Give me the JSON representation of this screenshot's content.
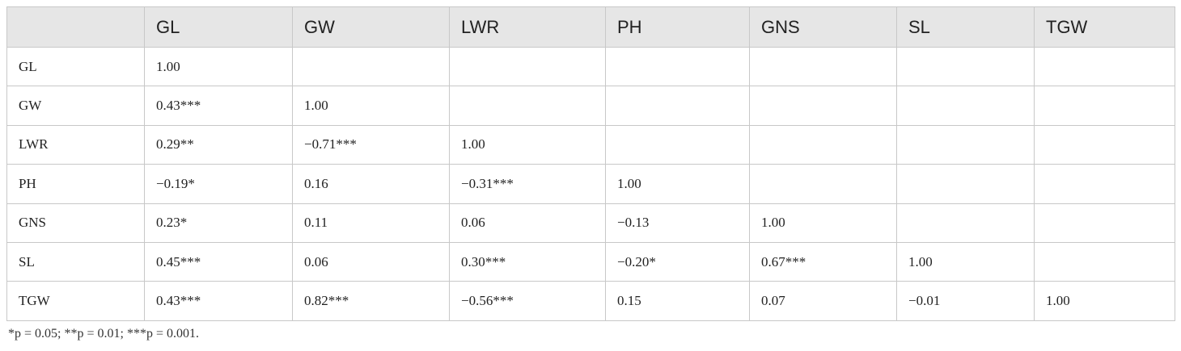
{
  "table": {
    "columns": [
      "GL",
      "GW",
      "LWR",
      "PH",
      "GNS",
      "SL",
      "TGW"
    ],
    "rows": [
      {
        "label": "GL",
        "cells": [
          "1.00"
        ]
      },
      {
        "label": "GW",
        "cells": [
          "0.43***",
          "1.00"
        ]
      },
      {
        "label": "LWR",
        "cells": [
          "0.29**",
          "−0.71***",
          "1.00"
        ]
      },
      {
        "label": "PH",
        "cells": [
          "−0.19*",
          "0.16",
          "−0.31***",
          "1.00"
        ]
      },
      {
        "label": "GNS",
        "cells": [
          "0.23*",
          "0.11",
          "0.06",
          "−0.13",
          "1.00"
        ]
      },
      {
        "label": "SL",
        "cells": [
          "0.45***",
          "0.06",
          "0.30***",
          "−0.20*",
          "0.67***",
          "1.00"
        ]
      },
      {
        "label": "TGW",
        "cells": [
          "0.43***",
          "0.82***",
          "−0.56***",
          "0.15",
          "0.07",
          "−0.01",
          "1.00"
        ]
      }
    ]
  },
  "footnote": "*p = 0.05; **p = 0.01; ***p = 0.001."
}
